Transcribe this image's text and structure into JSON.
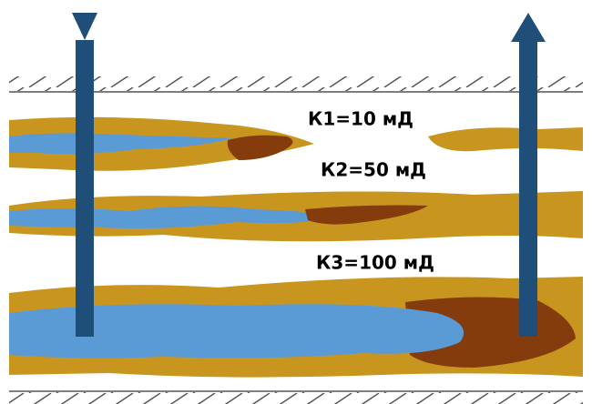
{
  "layers": [
    {
      "label": "К1=10 мД"
    },
    {
      "label": "К2=50 мД"
    },
    {
      "label": "К3=100 мД"
    }
  ]
}
